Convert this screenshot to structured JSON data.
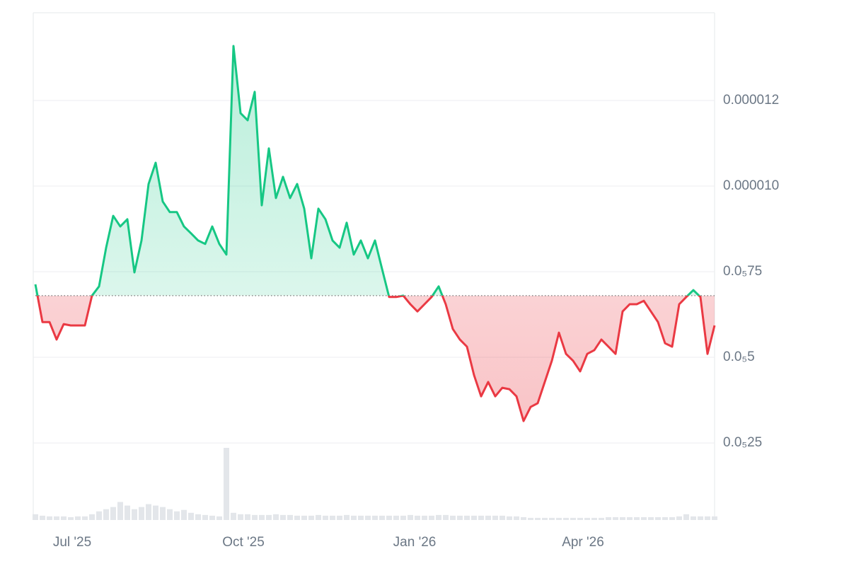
{
  "chart_data": {
    "type": "line",
    "values": [
      7.13e-06,
      6.03e-06,
      6.03e-06,
      5.52e-06,
      5.97e-06,
      5.93e-06,
      5.93e-06,
      5.93e-06,
      6.8e-06,
      7.07e-06,
      8.2e-06,
      9.13e-06,
      8.82e-06,
      9.03e-06,
      7.48e-06,
      8.41e-06,
      1.006e-05,
      1.068e-05,
      9.55e-06,
      9.24e-06,
      9.24e-06,
      8.82e-06,
      8.62e-06,
      8.41e-06,
      8.31e-06,
      8.82e-06,
      8.31e-06,
      8e-06,
      1.409e-05,
      1.213e-05,
      1.192e-05,
      1.275e-05,
      9.44e-06,
      1.11e-05,
      9.65e-06,
      1.027e-05,
      9.65e-06,
      1.006e-05,
      9.34e-06,
      7.89e-06,
      9.34e-06,
      9.03e-06,
      8.41e-06,
      8.2e-06,
      8.93e-06,
      8e-06,
      8.41e-06,
      7.89e-06,
      8.41e-06,
      7.58e-06,
      6.76e-06,
      6.76e-06,
      6.8e-06,
      6.55e-06,
      6.34e-06,
      6.55e-06,
      6.76e-06,
      7.07e-06,
      6.55e-06,
      5.83e-06,
      5.52e-06,
      5.31e-06,
      4.48e-06,
      3.86e-06,
      4.28e-06,
      3.86e-06,
      4.11e-06,
      4.07e-06,
      3.86e-06,
      3.14e-06,
      3.55e-06,
      3.66e-06,
      4.28e-06,
      4.9e-06,
      5.72e-06,
      5.1e-06,
      4.9e-06,
      4.59e-06,
      5.1e-06,
      5.21e-06,
      5.52e-06,
      5.31e-06,
      5.1e-06,
      6.34e-06,
      6.55e-06,
      6.55e-06,
      6.65e-06,
      6.34e-06,
      6.03e-06,
      5.41e-06,
      5.31e-06,
      6.55e-06,
      6.76e-06,
      6.96e-06,
      6.76e-06,
      5.1e-06,
      5.93e-06
    ],
    "baseline": 6.8e-06,
    "up_color": "#16c784",
    "down_color": "#ea3943",
    "volume": {
      "color": "#e3e6ea",
      "ylim": [
        0,
        100
      ],
      "values": [
        8,
        6,
        5,
        5,
        5,
        4,
        5,
        5,
        8,
        12,
        15,
        18,
        25,
        20,
        15,
        18,
        22,
        20,
        18,
        15,
        12,
        14,
        10,
        8,
        7,
        6,
        5,
        100,
        10,
        8,
        8,
        7,
        7,
        7,
        8,
        7,
        7,
        6,
        6,
        6,
        7,
        6,
        6,
        6,
        7,
        6,
        6,
        6,
        6,
        6,
        6,
        6,
        6,
        7,
        6,
        6,
        6,
        7,
        7,
        6,
        6,
        6,
        6,
        6,
        6,
        6,
        6,
        5,
        5,
        4,
        3,
        3,
        3,
        3,
        3,
        3,
        3,
        3,
        3,
        3,
        3,
        4,
        4,
        4,
        4,
        4,
        4,
        4,
        4,
        4,
        4,
        5,
        8,
        5,
        5,
        5,
        5
      ]
    },
    "xlim": [
      0,
      96
    ],
    "xticks": [
      {
        "value": 5.2,
        "label": "Jul '25"
      },
      {
        "value": 29.4,
        "label": "Oct '25"
      },
      {
        "value": 53.6,
        "label": "Jan '26"
      },
      {
        "value": 77.4,
        "label": "Apr '26"
      }
    ],
    "ylim": [
      2.5e-07,
      1.506e-05
    ],
    "yticks": [
      {
        "value": 1.25e-05,
        "label": "0.000012"
      },
      {
        "value": 1e-05,
        "label": "0.000010"
      },
      {
        "value": 7.5e-06,
        "label": "0.0₅75"
      },
      {
        "value": 5e-06,
        "label": "0.0₅5"
      },
      {
        "value": 2.5e-06,
        "label": "0.0₅25"
      }
    ],
    "grid": true
  }
}
